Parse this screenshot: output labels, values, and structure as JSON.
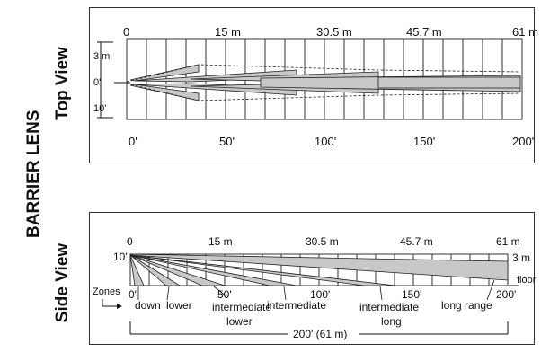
{
  "page_title": "BARRIER LENS",
  "top_view": {
    "label": "Top View",
    "metric_ticks": [
      "0",
      "15 m",
      "30.5 m",
      "45.7 m",
      "61 m"
    ],
    "feet_ticks": [
      "0'",
      "50'",
      "100'",
      "150'",
      "200'"
    ],
    "side_marks": [
      "3 m",
      "0'",
      "10'"
    ]
  },
  "side_view": {
    "label": "Side View",
    "metric_ticks": [
      "0",
      "15 m",
      "30.5 m",
      "45.7 m",
      "61 m"
    ],
    "feet_ticks": [
      "0'",
      "50'",
      "100'",
      "150'",
      "200'"
    ],
    "height_left": "10'",
    "height_right": "3 m",
    "floor_label": "floor",
    "zones_label": "Zones",
    "zones": [
      "down",
      "lower",
      "intermediate lower",
      "intermediate",
      "intermediate long",
      "long range"
    ],
    "total_range": "200' (61 m)"
  },
  "colors": {
    "beam_fill": "#c8c8c8",
    "grid": "#333333"
  }
}
